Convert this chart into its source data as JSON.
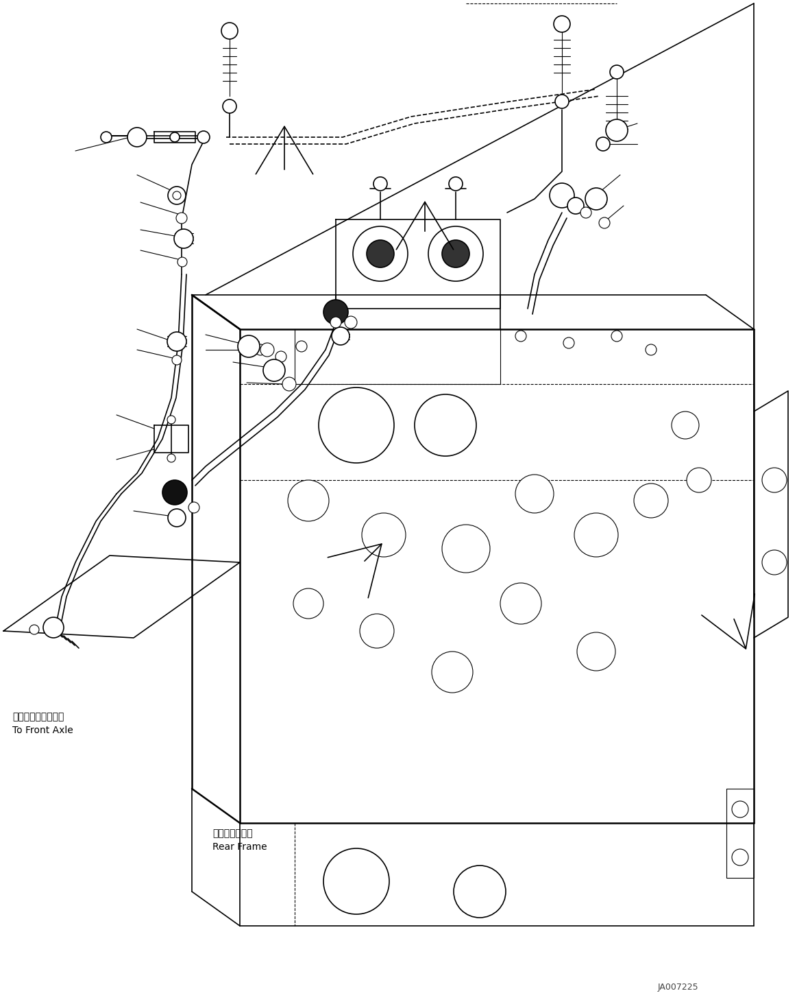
{
  "background_color": "#ffffff",
  "line_color": "#000000",
  "watermark": "JA007225",
  "label1_jp": "フロントアクスルへ",
  "label1_en": "To Front Axle",
  "label2_jp": "リヤーフレーム",
  "label2_en": "Rear Frame",
  "fig_width": 11.63,
  "fig_height": 14.61,
  "dpi": 100
}
